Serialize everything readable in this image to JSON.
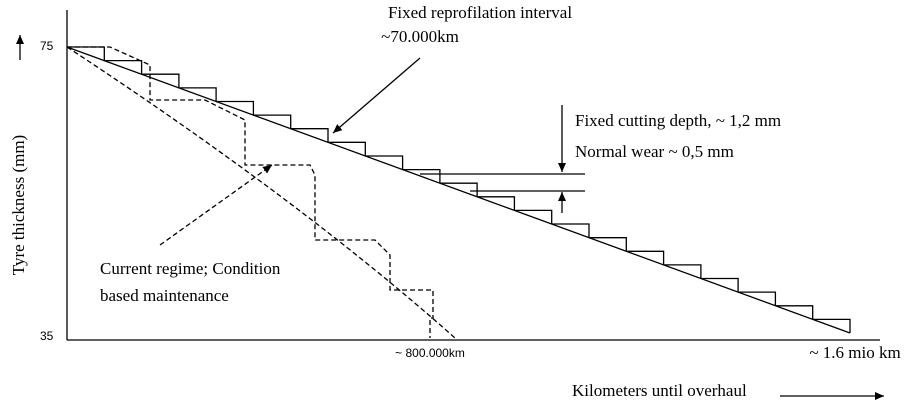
{
  "axes": {
    "y_label": "Tyre thickness (mm)",
    "y_top": "75",
    "y_bottom": "35",
    "x_label": "Kilometers until overhaul",
    "x_mid": "~ 800.000km",
    "x_end": "~ 1.6 mio km"
  },
  "annotations": {
    "interval_line1": "Fixed reprofilation interval",
    "interval_line2": "~70.000km",
    "cutting_depth": "Fixed cutting depth, ~ 1,2 mm",
    "normal_wear": "Normal wear ~ 0,5 mm",
    "regime_line1": "Current regime; Condition",
    "regime_line2": "based maintenance"
  }
}
